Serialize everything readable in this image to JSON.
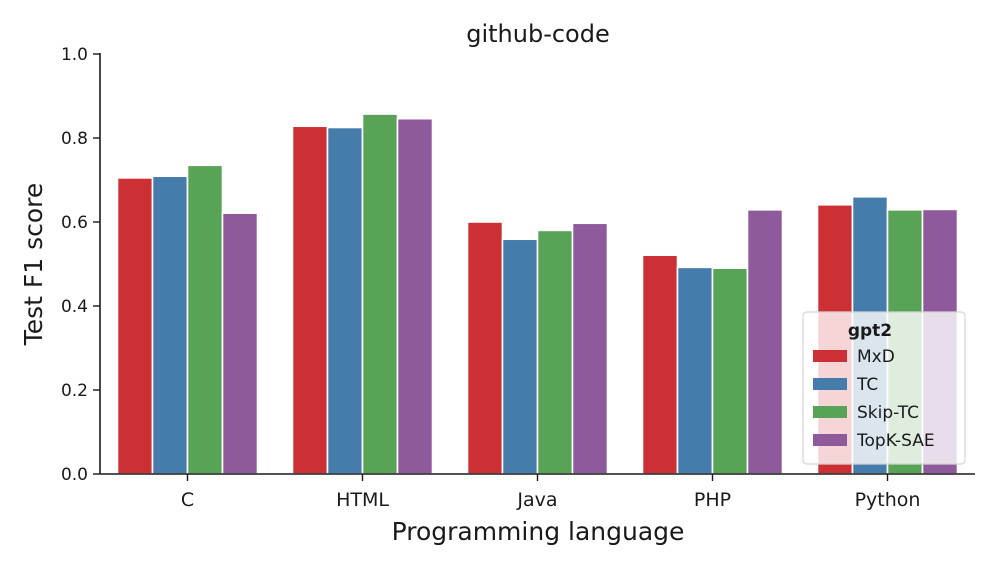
{
  "chart_data": {
    "type": "bar",
    "title": "github-code",
    "xlabel": "Programming language",
    "ylabel": "Test F1 score",
    "categories": [
      "C",
      "HTML",
      "Java",
      "PHP",
      "Python"
    ],
    "yticks": [
      "0.0",
      "0.2",
      "0.4",
      "0.6",
      "0.8",
      "1.0"
    ],
    "ylim": [
      0,
      1.0
    ],
    "grid": false,
    "legend": {
      "title": "gpt2",
      "placement": "lower-right"
    },
    "series": [
      {
        "name": "MxD",
        "color": "#cd3034",
        "values": [
          0.705,
          0.828,
          0.6,
          0.521,
          0.641
        ]
      },
      {
        "name": "TC",
        "color": "#467cab",
        "values": [
          0.709,
          0.825,
          0.559,
          0.492,
          0.66
        ]
      },
      {
        "name": "Skip-TC",
        "color": "#59a357",
        "values": [
          0.735,
          0.857,
          0.58,
          0.49,
          0.629
        ]
      },
      {
        "name": "TopK-SAE",
        "color": "#8e5a9b",
        "values": [
          0.621,
          0.846,
          0.597,
          0.629,
          0.63
        ]
      }
    ]
  }
}
